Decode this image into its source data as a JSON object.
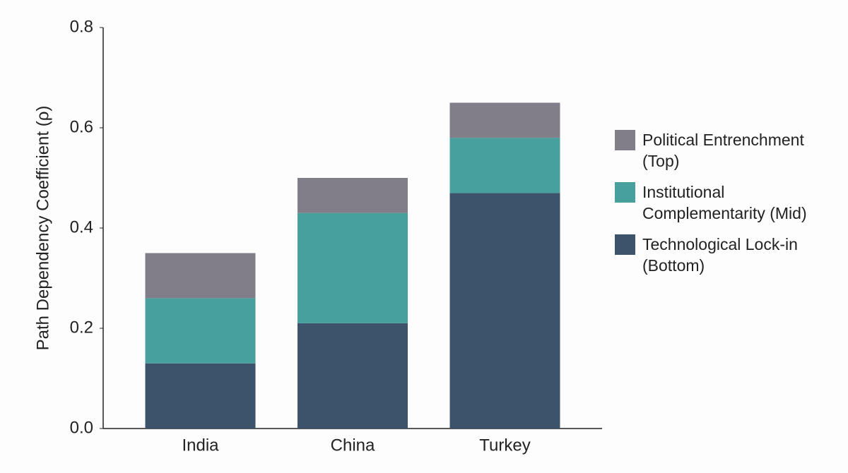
{
  "chart_data": {
    "type": "stacked_bar",
    "y_label": "Path Dependency Coefficient (ρ)",
    "categories": [
      "India",
      "China",
      "Turkey"
    ],
    "series": [
      {
        "name": "Technological Lock-in (Bottom)",
        "color": "#3d536b",
        "values": [
          0.13,
          0.21,
          0.47
        ]
      },
      {
        "name": "Institutional Complementarity (Mid)",
        "color": "#48a09c",
        "values": [
          0.13,
          0.22,
          0.11
        ]
      },
      {
        "name": "Political Entrenchment (Top)",
        "color": "#827e89",
        "values": [
          0.09,
          0.07,
          0.07
        ]
      }
    ],
    "ylim": [
      0,
      0.8
    ],
    "yticks": [
      {
        "value": 0,
        "label": "0.0"
      },
      0.2,
      0.4,
      0.6,
      0.8
    ]
  }
}
